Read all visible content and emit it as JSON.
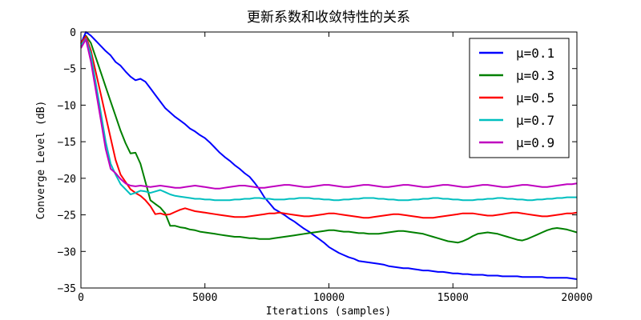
{
  "chart_data": {
    "type": "line",
    "title": "更新系数和收敛特性的关系",
    "xlabel": "Iterations (samples)",
    "ylabel": "Converge Level (dB)",
    "xlim": [
      0,
      20000
    ],
    "ylim": [
      -35,
      0
    ],
    "xticks": [
      0,
      5000,
      10000,
      15000,
      20000
    ],
    "yticks": [
      0,
      -5,
      -10,
      -15,
      -20,
      -25,
      -30,
      -35
    ],
    "grid": false,
    "legend_position": "top-right",
    "series": [
      {
        "name": "μ=0.1",
        "color": "#0000ff",
        "x": [
          0,
          200,
          400,
          600,
          800,
          1000,
          1200,
          1400,
          1600,
          1800,
          2000,
          2200,
          2400,
          2600,
          2800,
          3000,
          3200,
          3400,
          3600,
          3800,
          4000,
          4200,
          4400,
          4600,
          4800,
          5000,
          5200,
          5400,
          5600,
          5800,
          6000,
          6200,
          6400,
          6600,
          6800,
          7000,
          7200,
          7400,
          7600,
          7800,
          8000,
          8200,
          8400,
          8600,
          8800,
          9000,
          9200,
          9400,
          9600,
          9800,
          10000,
          10200,
          10400,
          10600,
          10800,
          11000,
          11200,
          11400,
          11600,
          11800,
          12000,
          12200,
          12400,
          12600,
          12800,
          13000,
          13200,
          13400,
          13600,
          13800,
          14000,
          14200,
          14400,
          14600,
          14800,
          15000,
          15200,
          15400,
          15600,
          15800,
          16000,
          16200,
          16400,
          16600,
          16800,
          17000,
          17200,
          17400,
          17600,
          17800,
          18000,
          18200,
          18400,
          18600,
          18800,
          19000,
          19200,
          19400,
          19600,
          19800,
          20000
        ],
        "y": [
          -1.6,
          0,
          -0.5,
          -1.2,
          -1.9,
          -2.6,
          -3.2,
          -4.1,
          -4.6,
          -5.4,
          -6.1,
          -6.6,
          -6.4,
          -6.8,
          -7.7,
          -8.6,
          -9.5,
          -10.4,
          -11.0,
          -11.6,
          -12.1,
          -12.6,
          -13.2,
          -13.6,
          -14.1,
          -14.5,
          -15.1,
          -15.8,
          -16.5,
          -17.1,
          -17.6,
          -18.2,
          -18.7,
          -19.3,
          -19.8,
          -20.6,
          -21.5,
          -22.6,
          -23.4,
          -24.2,
          -24.6,
          -25.0,
          -25.5,
          -25.9,
          -26.4,
          -26.9,
          -27.3,
          -27.8,
          -28.3,
          -28.8,
          -29.4,
          -29.8,
          -30.2,
          -30.5,
          -30.8,
          -31.0,
          -31.3,
          -31.4,
          -31.5,
          -31.6,
          -31.7,
          -31.8,
          -32.0,
          -32.1,
          -32.2,
          -32.3,
          -32.3,
          -32.4,
          -32.5,
          -32.6,
          -32.6,
          -32.7,
          -32.8,
          -32.8,
          -32.9,
          -33.0,
          -33.0,
          -33.1,
          -33.1,
          -33.2,
          -33.2,
          -33.2,
          -33.3,
          -33.3,
          -33.3,
          -33.4,
          -33.4,
          -33.4,
          -33.4,
          -33.5,
          -33.5,
          -33.5,
          -33.5,
          -33.5,
          -33.6,
          -33.6,
          -33.6,
          -33.6,
          -33.6,
          -33.7,
          -33.8
        ]
      },
      {
        "name": "μ=0.3",
        "color": "#008000",
        "x": [
          0,
          200,
          400,
          600,
          800,
          1000,
          1200,
          1400,
          1600,
          1800,
          2000,
          2200,
          2400,
          2600,
          2800,
          3000,
          3200,
          3400,
          3600,
          3800,
          4000,
          4200,
          4400,
          4600,
          4800,
          5000,
          5200,
          5400,
          5600,
          5800,
          6000,
          6200,
          6400,
          6600,
          6800,
          7000,
          7200,
          7400,
          7600,
          7800,
          8000,
          8200,
          8400,
          8600,
          8800,
          9000,
          9200,
          9400,
          9600,
          9800,
          10000,
          10200,
          10400,
          10600,
          10800,
          11000,
          11200,
          11400,
          11600,
          11800,
          12000,
          12200,
          12400,
          12600,
          12800,
          13000,
          13200,
          13400,
          13600,
          13800,
          14000,
          14200,
          14400,
          14600,
          14800,
          15000,
          15200,
          15400,
          15600,
          15800,
          16000,
          16200,
          16400,
          16600,
          16800,
          17000,
          17200,
          17400,
          17600,
          17800,
          18000,
          18200,
          18400,
          18600,
          18800,
          19000,
          19200,
          19400,
          19600,
          19800,
          20000
        ],
        "y": [
          -2.0,
          -0.5,
          -1.5,
          -3.5,
          -5.5,
          -7.5,
          -9.5,
          -11.5,
          -13.5,
          -15.2,
          -16.6,
          -16.5,
          -18.0,
          -20.5,
          -23.0,
          -23.5,
          -24.0,
          -24.8,
          -26.5,
          -26.5,
          -26.7,
          -26.8,
          -27.0,
          -27.1,
          -27.3,
          -27.4,
          -27.5,
          -27.6,
          -27.7,
          -27.8,
          -27.9,
          -28.0,
          -28.0,
          -28.1,
          -28.2,
          -28.2,
          -28.3,
          -28.3,
          -28.3,
          -28.2,
          -28.1,
          -28.0,
          -27.9,
          -27.8,
          -27.7,
          -27.6,
          -27.5,
          -27.4,
          -27.3,
          -27.2,
          -27.1,
          -27.1,
          -27.2,
          -27.3,
          -27.3,
          -27.4,
          -27.5,
          -27.5,
          -27.6,
          -27.6,
          -27.6,
          -27.5,
          -27.4,
          -27.3,
          -27.2,
          -27.2,
          -27.3,
          -27.4,
          -27.5,
          -27.6,
          -27.8,
          -28.0,
          -28.2,
          -28.4,
          -28.6,
          -28.7,
          -28.8,
          -28.6,
          -28.3,
          -27.9,
          -27.6,
          -27.5,
          -27.4,
          -27.5,
          -27.6,
          -27.8,
          -28.0,
          -28.2,
          -28.4,
          -28.5,
          -28.3,
          -28.0,
          -27.7,
          -27.4,
          -27.1,
          -26.9,
          -26.8,
          -26.9,
          -27.0,
          -27.2,
          -27.4
        ]
      },
      {
        "name": "μ=0.5",
        "color": "#ff0000",
        "x": [
          0,
          200,
          400,
          600,
          800,
          1000,
          1200,
          1400,
          1600,
          1800,
          2000,
          2200,
          2400,
          2600,
          2800,
          3000,
          3200,
          3400,
          3600,
          3800,
          4000,
          4200,
          4400,
          4600,
          4800,
          5000,
          5200,
          5400,
          5600,
          5800,
          6000,
          6200,
          6400,
          6600,
          6800,
          7000,
          7200,
          7400,
          7600,
          7800,
          8000,
          8200,
          8400,
          8600,
          8800,
          9000,
          9200,
          9400,
          9600,
          9800,
          10000,
          10200,
          10400,
          10600,
          10800,
          11000,
          11200,
          11400,
          11600,
          11800,
          12000,
          12200,
          12400,
          12600,
          12800,
          13000,
          13200,
          13400,
          13600,
          13800,
          14000,
          14200,
          14400,
          14600,
          14800,
          15000,
          15200,
          15400,
          15600,
          15800,
          16000,
          16200,
          16400,
          16600,
          16800,
          17000,
          17200,
          17400,
          17600,
          17800,
          18000,
          18200,
          18400,
          18600,
          18800,
          19000,
          19200,
          19400,
          19600,
          19800,
          20000
        ],
        "y": [
          -1.5,
          -0.6,
          -2.5,
          -5.5,
          -8.5,
          -11.5,
          -14.5,
          -17.5,
          -19.5,
          -20.5,
          -21.5,
          -22.0,
          -22.4,
          -23.0,
          -23.8,
          -24.9,
          -24.8,
          -25.0,
          -24.9,
          -24.6,
          -24.3,
          -24.1,
          -24.3,
          -24.5,
          -24.6,
          -24.7,
          -24.8,
          -24.9,
          -25.0,
          -25.1,
          -25.2,
          -25.3,
          -25.3,
          -25.3,
          -25.2,
          -25.1,
          -25.0,
          -24.9,
          -24.8,
          -24.8,
          -24.7,
          -24.8,
          -24.9,
          -25.0,
          -25.1,
          -25.2,
          -25.2,
          -25.1,
          -25.0,
          -24.9,
          -24.8,
          -24.8,
          -24.9,
          -25.0,
          -25.1,
          -25.2,
          -25.3,
          -25.4,
          -25.4,
          -25.3,
          -25.2,
          -25.1,
          -25.0,
          -24.9,
          -24.9,
          -25.0,
          -25.1,
          -25.2,
          -25.3,
          -25.4,
          -25.4,
          -25.4,
          -25.3,
          -25.2,
          -25.1,
          -25.0,
          -24.9,
          -24.8,
          -24.8,
          -24.8,
          -24.9,
          -25.0,
          -25.1,
          -25.1,
          -25.0,
          -24.9,
          -24.8,
          -24.7,
          -24.7,
          -24.8,
          -24.9,
          -25.0,
          -25.1,
          -25.2,
          -25.2,
          -25.1,
          -25.0,
          -24.9,
          -24.8,
          -24.8,
          -24.7
        ]
      },
      {
        "name": "μ=0.7",
        "color": "#00bfbf",
        "x": [
          0,
          200,
          400,
          600,
          800,
          1000,
          1200,
          1400,
          1600,
          1800,
          2000,
          2200,
          2400,
          2600,
          2800,
          3000,
          3200,
          3400,
          3600,
          3800,
          4000,
          4200,
          4400,
          4600,
          4800,
          5000,
          5200,
          5400,
          5600,
          5800,
          6000,
          6200,
          6400,
          6600,
          6800,
          7000,
          7200,
          7400,
          7600,
          7800,
          8000,
          8200,
          8400,
          8600,
          8800,
          9000,
          9200,
          9400,
          9600,
          9800,
          10000,
          10200,
          10400,
          10600,
          10800,
          11000,
          11200,
          11400,
          11600,
          11800,
          12000,
          12200,
          12400,
          12600,
          12800,
          13000,
          13200,
          13400,
          13600,
          13800,
          14000,
          14200,
          14400,
          14600,
          14800,
          15000,
          15200,
          15400,
          15600,
          15800,
          16000,
          16200,
          16400,
          16600,
          16800,
          17000,
          17200,
          17400,
          17600,
          17800,
          18000,
          18200,
          18400,
          18600,
          18800,
          19000,
          19200,
          19400,
          19600,
          19800,
          20000
        ],
        "y": [
          -1.8,
          -0.9,
          -3.0,
          -7.0,
          -11.0,
          -15.0,
          -18.0,
          -19.5,
          -20.8,
          -21.5,
          -22.2,
          -22.0,
          -21.7,
          -21.8,
          -22.0,
          -21.8,
          -21.6,
          -21.9,
          -22.2,
          -22.4,
          -22.5,
          -22.6,
          -22.7,
          -22.8,
          -22.8,
          -22.9,
          -22.9,
          -23.0,
          -23.0,
          -23.0,
          -23.0,
          -22.9,
          -22.9,
          -22.8,
          -22.8,
          -22.7,
          -22.7,
          -22.8,
          -22.8,
          -22.9,
          -22.9,
          -22.9,
          -22.8,
          -22.8,
          -22.7,
          -22.7,
          -22.7,
          -22.8,
          -22.8,
          -22.9,
          -22.9,
          -23.0,
          -23.0,
          -22.9,
          -22.9,
          -22.8,
          -22.8,
          -22.7,
          -22.7,
          -22.7,
          -22.8,
          -22.8,
          -22.9,
          -22.9,
          -23.0,
          -23.0,
          -23.0,
          -22.9,
          -22.9,
          -22.8,
          -22.8,
          -22.7,
          -22.7,
          -22.8,
          -22.8,
          -22.9,
          -22.9,
          -23.0,
          -23.0,
          -23.0,
          -22.9,
          -22.9,
          -22.8,
          -22.8,
          -22.7,
          -22.7,
          -22.8,
          -22.8,
          -22.9,
          -22.9,
          -23.0,
          -23.0,
          -22.9,
          -22.9,
          -22.8,
          -22.8,
          -22.7,
          -22.7,
          -22.6,
          -22.6,
          -22.6
        ]
      },
      {
        "name": "μ=0.9",
        "color": "#bf00bf",
        "x": [
          0,
          200,
          400,
          600,
          800,
          1000,
          1200,
          1400,
          1600,
          1800,
          2000,
          2200,
          2400,
          2600,
          2800,
          3000,
          3200,
          3400,
          3600,
          3800,
          4000,
          4200,
          4400,
          4600,
          4800,
          5000,
          5200,
          5400,
          5600,
          5800,
          6000,
          6200,
          6400,
          6600,
          6800,
          7000,
          7200,
          7400,
          7600,
          7800,
          8000,
          8200,
          8400,
          8600,
          8800,
          9000,
          9200,
          9400,
          9600,
          9800,
          10000,
          10200,
          10400,
          10600,
          10800,
          11000,
          11200,
          11400,
          11600,
          11800,
          12000,
          12200,
          12400,
          12600,
          12800,
          13000,
          13200,
          13400,
          13600,
          13800,
          14000,
          14200,
          14400,
          14600,
          14800,
          15000,
          15200,
          15400,
          15600,
          15800,
          16000,
          16200,
          16400,
          16600,
          16800,
          17000,
          17200,
          17400,
          17600,
          17800,
          18000,
          18200,
          18400,
          18600,
          18800,
          19000,
          19200,
          19400,
          19600,
          19800,
          20000
        ],
        "y": [
          -2.2,
          -1.0,
          -4.0,
          -8.0,
          -12.0,
          -16.0,
          -18.7,
          -19.3,
          -20.1,
          -20.7,
          -21.0,
          -21.1,
          -21.0,
          -21.1,
          -21.2,
          -21.1,
          -21.0,
          -21.1,
          -21.2,
          -21.3,
          -21.3,
          -21.2,
          -21.1,
          -21.0,
          -21.1,
          -21.2,
          -21.3,
          -21.4,
          -21.4,
          -21.3,
          -21.2,
          -21.1,
          -21.0,
          -21.0,
          -21.1,
          -21.2,
          -21.3,
          -21.3,
          -21.2,
          -21.1,
          -21.0,
          -20.9,
          -20.9,
          -21.0,
          -21.1,
          -21.2,
          -21.2,
          -21.1,
          -21.0,
          -20.9,
          -20.9,
          -21.0,
          -21.1,
          -21.2,
          -21.2,
          -21.1,
          -21.0,
          -20.9,
          -20.9,
          -21.0,
          -21.1,
          -21.2,
          -21.2,
          -21.1,
          -21.0,
          -20.9,
          -20.9,
          -21.0,
          -21.1,
          -21.2,
          -21.2,
          -21.1,
          -21.0,
          -20.9,
          -20.9,
          -21.0,
          -21.1,
          -21.2,
          -21.2,
          -21.1,
          -21.0,
          -20.9,
          -20.9,
          -21.0,
          -21.1,
          -21.2,
          -21.2,
          -21.1,
          -21.0,
          -20.9,
          -20.9,
          -21.0,
          -21.1,
          -21.2,
          -21.2,
          -21.1,
          -21.0,
          -20.9,
          -20.8,
          -20.8,
          -20.7
        ]
      }
    ]
  }
}
